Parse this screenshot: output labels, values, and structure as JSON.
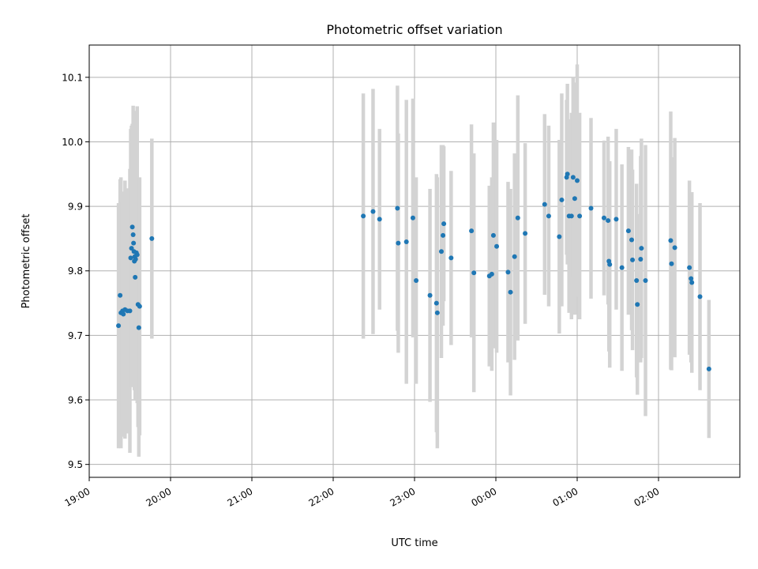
{
  "chart_data": {
    "type": "scatter",
    "title": "Photometric offset variation",
    "xlabel": "UTC time",
    "ylabel": "Photometric offset",
    "x_units": "hours after 19:00 UTC",
    "xlim": [
      0,
      8
    ],
    "ylim": [
      9.48,
      10.15
    ],
    "grid": true,
    "x_tick_labels": [
      "19:00",
      "20:00",
      "21:00",
      "22:00",
      "23:00",
      "00:00",
      "01:00",
      "02:00"
    ],
    "y_ticks": [
      9.5,
      9.6,
      9.7,
      9.8,
      9.9,
      10.0,
      10.1
    ],
    "y_tick_labels": [
      "9.5",
      "9.6",
      "9.7",
      "9.8",
      "9.9",
      "10.0",
      "10.1"
    ],
    "colors": {
      "points": "#1f77b4",
      "errorbars": "#d3d3d3",
      "grid": "#b0b0b0"
    },
    "points": [
      {
        "x": 0.36,
        "y": 9.715,
        "err": 0.19
      },
      {
        "x": 0.38,
        "y": 9.762,
        "err": 0.18
      },
      {
        "x": 0.39,
        "y": 9.735,
        "err": 0.21
      },
      {
        "x": 0.41,
        "y": 9.738,
        "err": 0.17
      },
      {
        "x": 0.42,
        "y": 9.733,
        "err": 0.19
      },
      {
        "x": 0.44,
        "y": 9.74,
        "err": 0.2
      },
      {
        "x": 0.47,
        "y": 9.738,
        "err": 0.19
      },
      {
        "x": 0.5,
        "y": 9.738,
        "err": 0.22
      },
      {
        "x": 0.51,
        "y": 9.82,
        "err": 0.2
      },
      {
        "x": 0.52,
        "y": 9.835,
        "err": 0.19
      },
      {
        "x": 0.53,
        "y": 9.868,
        "err": 0.16
      },
      {
        "x": 0.54,
        "y": 9.856,
        "err": 0.2
      },
      {
        "x": 0.545,
        "y": 9.843,
        "err": 0.17
      },
      {
        "x": 0.55,
        "y": 9.83,
        "err": 0.21
      },
      {
        "x": 0.555,
        "y": 9.815,
        "err": 0.2
      },
      {
        "x": 0.56,
        "y": 9.822,
        "err": 0.18
      },
      {
        "x": 0.565,
        "y": 9.79,
        "err": 0.19
      },
      {
        "x": 0.57,
        "y": 9.818,
        "err": 0.2
      },
      {
        "x": 0.58,
        "y": 9.828,
        "err": 0.22
      },
      {
        "x": 0.59,
        "y": 9.825,
        "err": 0.23
      },
      {
        "x": 0.6,
        "y": 9.748,
        "err": 0.19
      },
      {
        "x": 0.61,
        "y": 9.712,
        "err": 0.2
      },
      {
        "x": 0.62,
        "y": 9.745,
        "err": 0.2
      },
      {
        "x": 0.77,
        "y": 9.85,
        "err": 0.155
      },
      {
        "x": 3.37,
        "y": 9.885,
        "err": 0.19
      },
      {
        "x": 3.49,
        "y": 9.892,
        "err": 0.19
      },
      {
        "x": 3.57,
        "y": 9.88,
        "err": 0.14
      },
      {
        "x": 3.79,
        "y": 9.897,
        "err": 0.19
      },
      {
        "x": 3.8,
        "y": 9.843,
        "err": 0.17
      },
      {
        "x": 3.9,
        "y": 9.845,
        "err": 0.22
      },
      {
        "x": 3.98,
        "y": 9.882,
        "err": 0.185
      },
      {
        "x": 4.02,
        "y": 9.785,
        "err": 0.16
      },
      {
        "x": 4.19,
        "y": 9.762,
        "err": 0.165
      },
      {
        "x": 4.27,
        "y": 9.75,
        "err": 0.2
      },
      {
        "x": 4.28,
        "y": 9.735,
        "err": 0.21
      },
      {
        "x": 4.33,
        "y": 9.83,
        "err": 0.165
      },
      {
        "x": 4.35,
        "y": 9.855,
        "err": 0.14
      },
      {
        "x": 4.36,
        "y": 9.873,
        "err": 0.12
      },
      {
        "x": 4.45,
        "y": 9.82,
        "err": 0.135
      },
      {
        "x": 4.7,
        "y": 9.862,
        "err": 0.165
      },
      {
        "x": 4.73,
        "y": 9.797,
        "err": 0.185
      },
      {
        "x": 4.92,
        "y": 9.792,
        "err": 0.14
      },
      {
        "x": 4.95,
        "y": 9.795,
        "err": 0.15
      },
      {
        "x": 4.97,
        "y": 9.855,
        "err": 0.175
      },
      {
        "x": 5.01,
        "y": 9.838,
        "err": 0.165
      },
      {
        "x": 5.15,
        "y": 9.798,
        "err": 0.14
      },
      {
        "x": 5.18,
        "y": 9.767,
        "err": 0.16
      },
      {
        "x": 5.23,
        "y": 9.822,
        "err": 0.16
      },
      {
        "x": 5.27,
        "y": 9.882,
        "err": 0.19
      },
      {
        "x": 5.36,
        "y": 9.858,
        "err": 0.14
      },
      {
        "x": 5.6,
        "y": 9.903,
        "err": 0.14
      },
      {
        "x": 5.65,
        "y": 9.885,
        "err": 0.14
      },
      {
        "x": 5.78,
        "y": 9.853,
        "err": 0.15
      },
      {
        "x": 5.81,
        "y": 9.91,
        "err": 0.165
      },
      {
        "x": 5.87,
        "y": 9.945,
        "err": 0.12
      },
      {
        "x": 5.88,
        "y": 9.95,
        "err": 0.14
      },
      {
        "x": 5.9,
        "y": 9.885,
        "err": 0.15
      },
      {
        "x": 5.93,
        "y": 9.885,
        "err": 0.16
      },
      {
        "x": 5.95,
        "y": 9.945,
        "err": 0.155
      },
      {
        "x": 5.97,
        "y": 9.912,
        "err": 0.18
      },
      {
        "x": 6.0,
        "y": 9.94,
        "err": 0.18
      },
      {
        "x": 6.03,
        "y": 9.885,
        "err": 0.16
      },
      {
        "x": 6.17,
        "y": 9.897,
        "err": 0.14
      },
      {
        "x": 6.33,
        "y": 9.882,
        "err": 0.12
      },
      {
        "x": 6.38,
        "y": 9.878,
        "err": 0.13
      },
      {
        "x": 6.39,
        "y": 9.815,
        "err": 0.14
      },
      {
        "x": 6.4,
        "y": 9.81,
        "err": 0.16
      },
      {
        "x": 6.48,
        "y": 9.88,
        "err": 0.14
      },
      {
        "x": 6.55,
        "y": 9.805,
        "err": 0.16
      },
      {
        "x": 6.63,
        "y": 9.862,
        "err": 0.13
      },
      {
        "x": 6.67,
        "y": 9.848,
        "err": 0.14
      },
      {
        "x": 6.68,
        "y": 9.817,
        "err": 0.14
      },
      {
        "x": 6.73,
        "y": 9.785,
        "err": 0.15
      },
      {
        "x": 6.74,
        "y": 9.748,
        "err": 0.14
      },
      {
        "x": 6.78,
        "y": 9.818,
        "err": 0.16
      },
      {
        "x": 6.79,
        "y": 9.835,
        "err": 0.17
      },
      {
        "x": 6.84,
        "y": 9.785,
        "err": 0.21
      },
      {
        "x": 7.15,
        "y": 9.847,
        "err": 0.2
      },
      {
        "x": 7.16,
        "y": 9.811,
        "err": 0.165
      },
      {
        "x": 7.2,
        "y": 9.836,
        "err": 0.17
      },
      {
        "x": 7.38,
        "y": 9.805,
        "err": 0.135
      },
      {
        "x": 7.4,
        "y": 9.788,
        "err": 0.13
      },
      {
        "x": 7.41,
        "y": 9.782,
        "err": 0.14
      },
      {
        "x": 7.51,
        "y": 9.76,
        "err": 0.145
      },
      {
        "x": 7.62,
        "y": 9.648,
        "err": 0.107
      }
    ]
  }
}
